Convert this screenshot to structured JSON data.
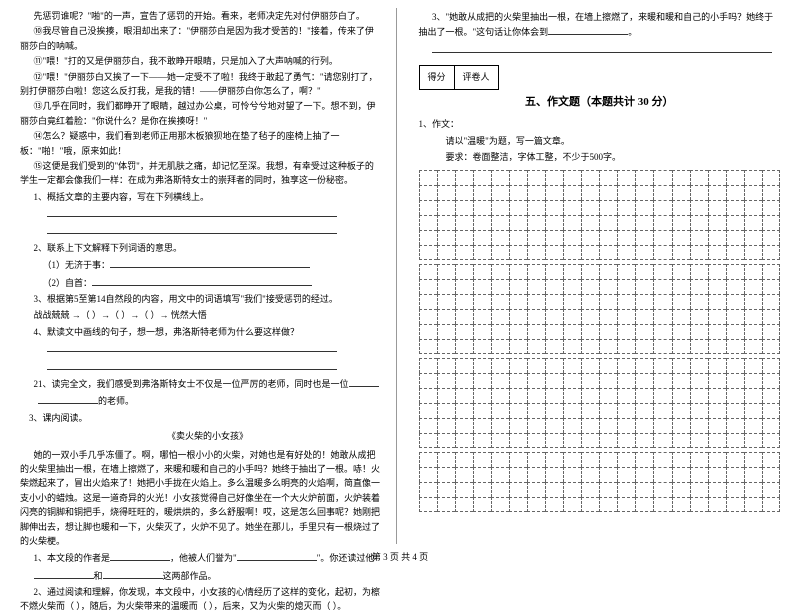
{
  "left": {
    "p1": "先惩罚谁呢？\"啪\"的一声，宣告了惩罚的开始。看来，老师决定先对付伊丽莎白了。",
    "p2": "⑩我尽管自己没挨揍，眼泪却出来了：\"伊丽莎白是因为我才受苦的！\"接着，传来了伊丽莎白的呐喊。",
    "p3": "⑪\"喂！\"打的又是伊丽莎白，我不敢睁开眼睛，只是加入了大声呐喊的行列。",
    "p4": "⑫\"喂！\"伊丽莎白又挨了一下——她一定受不了啦！我终于敢起了勇气：\"请您别打了，别打伊丽莎白啦！您这么反打我，是我的错！——伊丽莎白你怎么了，啊？\"",
    "p5": "⑬几乎在同时，我们都睁开了眼睛，越过办公桌，可怜兮兮地对望了一下。想不到，伊丽莎白竟红着脸：\"你说什么？是你在挨揍呀！\"",
    "p6": "⑭怎么？疑惑中，我们看到老师正用那木板狼狈地在垫了毡子的座椅上抽了一板：\"啪！\"哦，原来如此！",
    "p7": "⑮这便是我们受到的\"体罚\"，并无肌肤之痛，却记忆至深。我想，有幸受过这种板子的学生一定都会像我们一样：在成为弗洛斯特女士的崇拜者的同时，独享这一份秘密。",
    "q1": "1、概括文章的主要内容，写在下列横线上。",
    "q2": "2、联系上下文解释下列词语的意思。",
    "q2a": "（1）无济于事：",
    "q2b": "（2）自首：",
    "q3": "3、根据第5至第14自然段的内容，用文中的词语填写\"我们\"接受惩罚的经过。",
    "q3a": "战战兢兢  →（       ）→（       ）→（       ）→ 恍然大悟",
    "q4": "4、默读文中画线的句子，想一想，弗洛斯特老师为什么要这样做？",
    "q21": "21、读完全文，我们感受到弗洛斯特女士不仅是一位严厉的老师，同时也是一位",
    "q21a": "的老师。",
    "q22": "3、课内阅读。",
    "title2": "《卖火柴的小女孩》",
    "p8": "她的一双小手几乎冻僵了。啊，哪怕一根小小的火柴，对她也是有好处的！她敢从成把的火柴里抽出一根，在墙上擦燃了，来暖和暖和自己的小手吗？她终于抽出了一根。哧！火柴燃起来了，冒出火焰来了！她把小手拢在火焰上。多么温暖多么明亮的火焰啊，简直像一支小小的蜡烛。这是一道奇异的火光！小女孩觉得自己好像坐在一个大火炉前面，火炉装着闪亮的铜脚和铜把手，烧得旺旺的，暖烘烘的，多么舒服啊！哎，这是怎么回事呢？她刚把脚伸出去，想让脚也暖和一下，火柴灭了，火炉不见了。她坐在那儿，手里只有一根烧过了的火柴梗。",
    "q5": "1、本文段的作者是",
    "q5a": "，他被人们誉为\"",
    "q5b": "\"。你还读过他",
    "q5c": "和",
    "q5d": "这两部作品。",
    "q6": "2、通过阅读和理解，你发现，本文段中，小女孩的心情经历了这样的变化，起初，为檫不燃火柴而（       ），随后，为火柴带来的温暖而（       ），后来，又为火柴的熄灭而（       ）。"
  },
  "right": {
    "q7": "3、\"她敢从成把的火柴里抽出一根，在墙上擦燃了，来暖和暖和自己的小手吗？她终于抽出了一根。\"这句话让你体会到",
    "q7a": "。",
    "score1": "得分",
    "score2": "评卷人",
    "section": "五、作文题（本题共计 30 分）",
    "w1": "1、作文：",
    "w2": "请以\"温暖\"为题，写一篇文章。",
    "w3": "要求：卷面整洁，字体工整，不少于500字。"
  },
  "footer": "第 3 页 共 4 页",
  "grid": {
    "rows": 14,
    "cols": 20,
    "blocks": 4
  }
}
